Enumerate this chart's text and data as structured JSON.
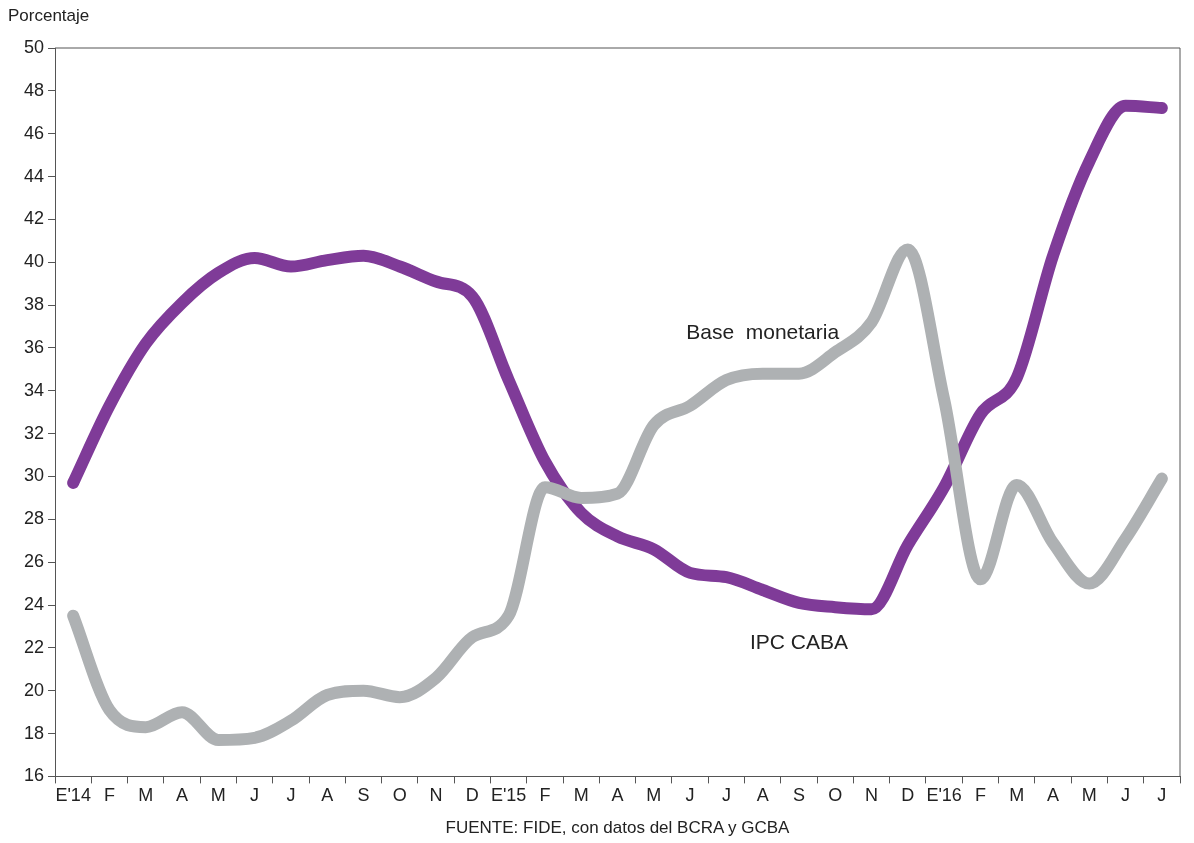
{
  "chart_data": {
    "type": "line",
    "ylabel": "Porcentaje",
    "categories": [
      "E'14",
      "F",
      "M",
      "A",
      "M",
      "J",
      "J",
      "A",
      "S",
      "O",
      "N",
      "D",
      "E'15",
      "F",
      "M",
      "A",
      "M",
      "J",
      "J",
      "A",
      "S",
      "O",
      "N",
      "D",
      "E'16",
      "F",
      "M",
      "A",
      "M",
      "J",
      "J"
    ],
    "series": [
      {
        "name": "Base  monetaria",
        "color": "#aeb1b3",
        "values": [
          23.5,
          19.1,
          18.3,
          19.0,
          17.7,
          17.8,
          18.6,
          19.8,
          20.0,
          19.7,
          20.6,
          22.5,
          23.5,
          29.5,
          29.0,
          29.2,
          32.4,
          33.3,
          34.5,
          34.8,
          34.8,
          35.8,
          37.2,
          40.6,
          33.6,
          25.2,
          29.6,
          26.9,
          25.0,
          27.1,
          29.9
        ]
      },
      {
        "name": "IPC CABA",
        "color": "#7f3b98",
        "values": [
          29.7,
          33.3,
          36.2,
          38.1,
          39.5,
          40.2,
          39.8,
          40.1,
          40.3,
          39.8,
          39.1,
          38.4,
          34.5,
          30.7,
          28.3,
          27.2,
          26.6,
          25.5,
          25.3,
          24.7,
          24.1,
          23.9,
          23.8,
          26.8,
          29.5,
          32.9,
          34.6,
          40.3,
          44.7,
          47.3,
          47.2
        ]
      }
    ],
    "ylim": [
      16,
      50
    ],
    "yticks": [
      16,
      18,
      20,
      22,
      24,
      26,
      28,
      30,
      32,
      34,
      36,
      38,
      40,
      42,
      44,
      46,
      48,
      50
    ],
    "grid": false,
    "legend": false,
    "marker": "none",
    "line_style": "solid",
    "annotations": [
      "FUENTE: FIDE, con datos del BCRA y GCBA"
    ]
  }
}
